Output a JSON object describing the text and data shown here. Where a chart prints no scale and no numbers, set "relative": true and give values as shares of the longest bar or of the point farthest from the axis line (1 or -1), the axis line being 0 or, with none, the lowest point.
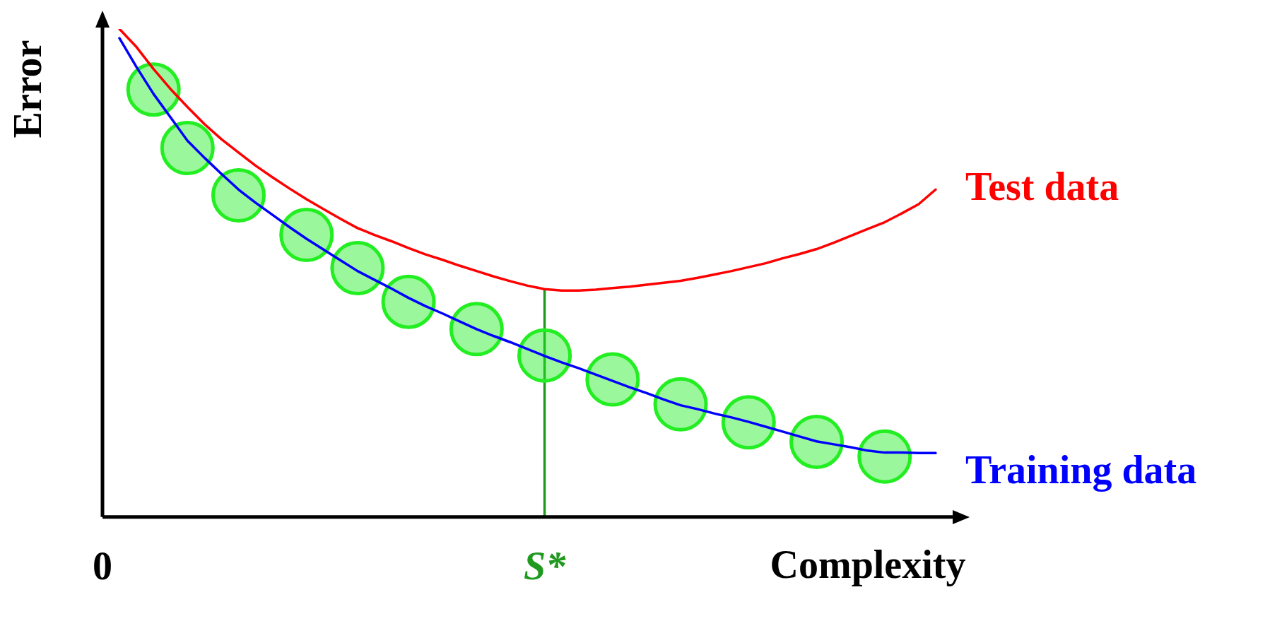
{
  "chart_data": {
    "type": "line",
    "relative": true,
    "xlabel": "Complexity",
    "ylabel": "Error",
    "grid": false,
    "legend": false,
    "categories": [
      "0",
      null,
      null,
      null,
      null,
      null,
      null,
      null,
      null,
      null,
      null,
      null,
      null,
      null,
      null,
      null,
      null,
      null,
      null,
      null,
      null,
      null,
      null,
      null,
      null,
      null,
      "S*",
      null,
      null,
      null,
      null,
      null,
      null,
      null,
      null,
      null,
      null,
      null,
      null,
      null,
      null,
      null,
      null,
      null,
      null,
      null,
      null,
      null,
      null,
      null,
      null
    ],
    "ref_lines": [
      {
        "axis": "x",
        "value": "S*",
        "color": "#1f9a1f"
      }
    ],
    "series": [
      {
        "name": "Test data",
        "type": "line",
        "marker": "none",
        "color": "#ff0000",
        "values": [
          null,
          1.0,
          0.963,
          0.918,
          0.877,
          0.84,
          0.805,
          0.774,
          0.747,
          0.72,
          0.696,
          0.673,
          0.651,
          0.631,
          0.611,
          0.592,
          0.578,
          0.565,
          0.551,
          0.538,
          0.527,
          0.515,
          0.504,
          0.493,
          0.483,
          0.474,
          0.467,
          0.464,
          0.464,
          0.466,
          0.469,
          0.472,
          0.476,
          0.48,
          0.484,
          0.49,
          0.497,
          0.504,
          0.512,
          0.52,
          0.53,
          0.539,
          0.549,
          0.562,
          0.576,
          0.59,
          0.604,
          0.622,
          0.641,
          0.671,
          null
        ]
      },
      {
        "name": "Training data",
        "type": "line",
        "marker": "none",
        "color": "#0000ff",
        "values": [
          null,
          0.981,
          0.922,
          0.867,
          0.819,
          0.771,
          0.736,
          0.703,
          0.671,
          0.644,
          0.619,
          0.594,
          0.57,
          0.548,
          0.526,
          0.504,
          0.486,
          0.468,
          0.449,
          0.432,
          0.417,
          0.401,
          0.385,
          0.371,
          0.358,
          0.344,
          0.33,
          0.317,
          0.305,
          0.292,
          0.279,
          0.266,
          0.254,
          0.241,
          0.229,
          0.221,
          0.212,
          0.204,
          0.195,
          0.185,
          0.175,
          0.165,
          0.155,
          0.149,
          0.143,
          0.136,
          0.132,
          0.132,
          0.131,
          0.131,
          null
        ]
      },
      {
        "type": "scatter",
        "marker": "circle",
        "color": "#22ee22",
        "values": [
          null,
          null,
          null,
          0.876,
          null,
          0.756,
          null,
          null,
          0.659,
          null,
          null,
          null,
          0.578,
          null,
          null,
          0.51,
          null,
          null,
          0.441,
          null,
          null,
          null,
          0.385,
          null,
          null,
          null,
          0.331,
          null,
          null,
          null,
          0.282,
          null,
          null,
          null,
          0.231,
          null,
          null,
          null,
          0.194,
          null,
          null,
          null,
          0.154,
          null,
          null,
          null,
          0.124,
          null,
          null,
          null,
          null
        ]
      }
    ]
  }
}
